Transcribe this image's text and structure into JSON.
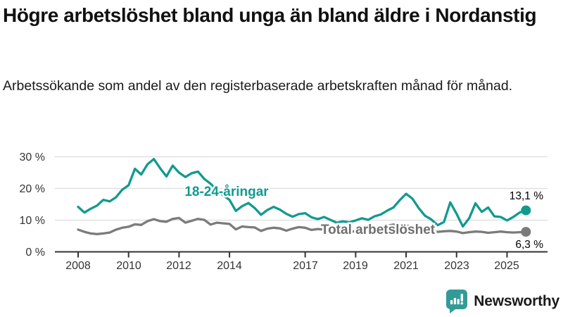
{
  "header": {
    "title": "Högre arbetslöshet bland unga än bland äldre i Nordanstig",
    "subtitle": "Arbetssökande som andel av den registerbaserade arbetskraften månad för månad."
  },
  "colors": {
    "teal": "#119a90",
    "gray": "#7b7b7b",
    "gray_label": "#6f6f6f",
    "axis": "#333333",
    "grid": "#dcdcdc",
    "logo": "#339b97"
  },
  "chart_data": {
    "type": "line",
    "title": "Högre arbetslöshet bland unga än bland äldre i Nordanstig",
    "xlabel": "",
    "ylabel": "",
    "ylim": [
      0,
      32
    ],
    "grid": true,
    "legend_position": "inline-labels",
    "x": [
      2008,
      2008.25,
      2008.5,
      2008.75,
      2009,
      2009.25,
      2009.5,
      2009.75,
      2010,
      2010.25,
      2010.5,
      2010.75,
      2011,
      2011.25,
      2011.5,
      2011.75,
      2012,
      2012.25,
      2012.5,
      2012.75,
      2013,
      2013.25,
      2013.5,
      2013.75,
      2014,
      2014.25,
      2014.5,
      2014.75,
      2015,
      2015.25,
      2015.5,
      2015.75,
      2016,
      2016.25,
      2016.5,
      2016.75,
      2017,
      2017.25,
      2017.5,
      2017.75,
      2018,
      2018.25,
      2018.5,
      2018.75,
      2019,
      2019.25,
      2019.5,
      2019.75,
      2020,
      2020.25,
      2020.5,
      2020.75,
      2021,
      2021.25,
      2021.5,
      2021.75,
      2022,
      2022.25,
      2022.5,
      2022.75,
      2023,
      2023.25,
      2023.5,
      2023.75,
      2024,
      2024.25,
      2024.5,
      2024.75,
      2025,
      2025.25,
      2025.5,
      2025.75
    ],
    "series": [
      {
        "name": "18-24-åringar",
        "color": "#119a90",
        "end_label": "13,1 %",
        "end_value": 13.1,
        "values": [
          14.2,
          12.4,
          13.6,
          14.6,
          16.4,
          15.9,
          17.2,
          19.6,
          21.0,
          26.2,
          24.4,
          27.6,
          29.3,
          26.4,
          23.8,
          27.2,
          25.0,
          23.6,
          24.8,
          25.3,
          23.0,
          21.5,
          19.4,
          17.8,
          16.4,
          12.9,
          14.4,
          15.4,
          13.8,
          11.7,
          13.2,
          14.2,
          13.3,
          12.0,
          11.1,
          11.9,
          12.2,
          10.9,
          10.3,
          11.0,
          10.1,
          9.2,
          9.6,
          9.3,
          9.9,
          10.6,
          10.1,
          11.2,
          11.8,
          13.0,
          14.0,
          16.3,
          18.3,
          16.8,
          13.8,
          11.4,
          10.2,
          8.4,
          9.4,
          15.6,
          12.0,
          8.0,
          10.6,
          15.3,
          12.6,
          14.0,
          11.2,
          11.0,
          9.9,
          11.0,
          12.4,
          13.1
        ]
      },
      {
        "name": "Total arbetslöshet",
        "color": "#7b7b7b",
        "end_label": "6,3 %",
        "end_value": 6.3,
        "values": [
          7.0,
          6.3,
          5.8,
          5.6,
          5.8,
          6.1,
          7.0,
          7.6,
          7.9,
          8.7,
          8.5,
          9.7,
          10.3,
          9.7,
          9.5,
          10.4,
          10.7,
          9.2,
          9.8,
          10.4,
          10.1,
          8.6,
          9.2,
          9.0,
          8.8,
          7.1,
          8.0,
          7.8,
          7.7,
          6.6,
          7.3,
          7.6,
          7.4,
          6.7,
          7.3,
          7.8,
          7.6,
          6.9,
          7.2,
          7.0,
          6.8,
          6.1,
          6.4,
          6.3,
          6.5,
          6.6,
          6.7,
          6.9,
          7.2,
          8.2,
          8.6,
          8.4,
          8.3,
          7.9,
          7.4,
          7.0,
          6.8,
          6.3,
          6.5,
          6.6,
          6.4,
          5.9,
          6.2,
          6.4,
          6.3,
          6.0,
          6.2,
          6.4,
          6.2,
          6.1,
          6.2,
          6.3
        ]
      }
    ],
    "yticks": [
      {
        "value": 0,
        "label": "0 %"
      },
      {
        "value": 10,
        "label": "10 %"
      },
      {
        "value": 20,
        "label": "20 %"
      },
      {
        "value": 30,
        "label": "30 %"
      }
    ],
    "xticks": [
      {
        "value": 2008,
        "label": "2008"
      },
      {
        "value": 2010,
        "label": "2010"
      },
      {
        "value": 2012,
        "label": "2012"
      },
      {
        "value": 2014,
        "label": "2014"
      },
      {
        "value": 2017,
        "label": "2017"
      },
      {
        "value": 2019,
        "label": "2019"
      },
      {
        "value": 2021,
        "label": "2021"
      },
      {
        "value": 2023,
        "label": "2023"
      },
      {
        "value": 2025,
        "label": "2025"
      }
    ]
  },
  "footer": {
    "brand": "Newsworthy"
  }
}
